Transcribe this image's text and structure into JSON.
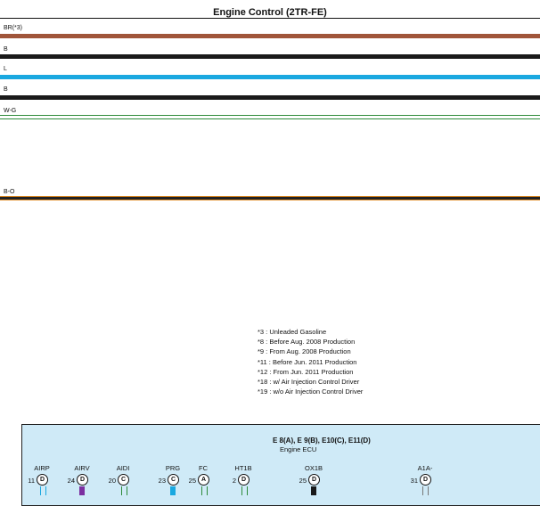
{
  "title": "Engine Control (2TR-FE)",
  "wires": [
    {
      "label": "BR(*3)",
      "color": "#a0553a"
    },
    {
      "label": "B",
      "color": "#1a1a1a"
    },
    {
      "label": "L",
      "color": "#1aa8e0"
    },
    {
      "label": "B",
      "color": "#1a1a1a"
    },
    {
      "label": "W-G",
      "color": "#2e8b3a"
    },
    {
      "label": "B-O",
      "color": "#e08a20"
    }
  ],
  "notes": [
    "*3 : Unleaded Gasoline",
    "*8 : Before Aug. 2008 Production",
    "*9 : From Aug. 2008 Production",
    "*11 : Before Jun. 2011 Production",
    "*12 : From Jun. 2011 Production",
    "*18 : w/ Air Injection Control Driver",
    "*19 : w/o Air Injection Control Driver"
  ],
  "ecu": {
    "connectors": "E 8(A), E 9(B), E10(C), E11(D)",
    "name": "Engine ECU",
    "pins": [
      {
        "name": "AIRP",
        "num": "11",
        "conn": "D",
        "color": "#1aa8e0"
      },
      {
        "name": "AIRV",
        "num": "24",
        "conn": "D",
        "color": "#7b2fa0"
      },
      {
        "name": "AIDI",
        "num": "20",
        "conn": "C",
        "color": "#2e8b3a"
      },
      {
        "name": "PRG",
        "num": "23",
        "conn": "C",
        "color": "#1aa8e0"
      },
      {
        "name": "FC",
        "num": "25",
        "conn": "A",
        "color": "#2e8b3a"
      },
      {
        "name": "HT1B",
        "num": "2",
        "conn": "D",
        "color": "#2e8b3a"
      },
      {
        "name": "OX1B",
        "num": "25",
        "conn": "D",
        "color": "#1a1a1a"
      },
      {
        "name": "A1A-",
        "num": "31",
        "conn": "D",
        "color": "#9a9a9a"
      }
    ]
  }
}
